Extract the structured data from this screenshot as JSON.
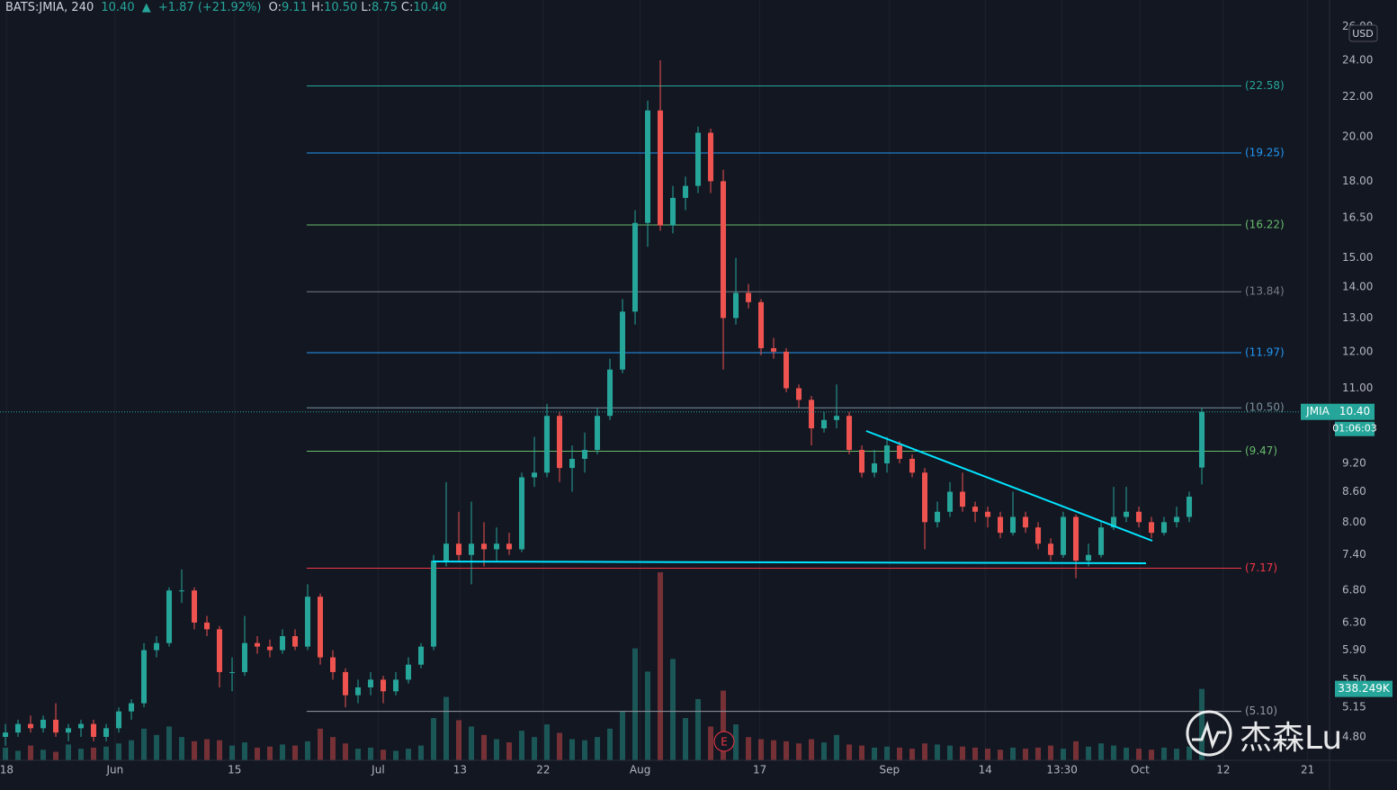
{
  "header": {
    "symbol": "BATS:JMIA, 240",
    "last": "10.40",
    "change": "+1.87 (+21.92%)",
    "fields": [
      {
        "label": "O:",
        "value": "9.11"
      },
      {
        "label": "H:",
        "value": "10.50"
      },
      {
        "label": "L:",
        "value": "8.75"
      },
      {
        "label": "C:",
        "value": "10.40"
      }
    ]
  },
  "price_tag": {
    "symbol": "JMIA",
    "price": "10.40",
    "countdown": "01:06:03"
  },
  "currency": "USD",
  "watermark": "杰森Lu",
  "chart_data": {
    "type": "candlestick",
    "log_scale": true,
    "grid": true,
    "up_color": "#26a69a",
    "down_color": "#ef5350",
    "ylim": [
      4.54,
      27.7
    ],
    "yticks": [
      {
        "value": 26,
        "label": "26.00"
      },
      {
        "value": 24,
        "label": "24.00"
      },
      {
        "value": 22,
        "label": "22.00"
      },
      {
        "value": 20,
        "label": "20.00"
      },
      {
        "value": 18,
        "label": "18.00"
      },
      {
        "value": 16.5,
        "label": "16.50"
      },
      {
        "value": 15,
        "label": "15.00"
      },
      {
        "value": 14,
        "label": "14.00"
      },
      {
        "value": 13,
        "label": "13.00"
      },
      {
        "value": 12,
        "label": "12.00"
      },
      {
        "value": 11,
        "label": "11.00"
      },
      {
        "value": 9.2,
        "label": "9.20"
      },
      {
        "value": 8.6,
        "label": "8.60"
      },
      {
        "value": 8,
        "label": "8.00"
      },
      {
        "value": 7.4,
        "label": "7.40"
      },
      {
        "value": 6.8,
        "label": "6.80"
      },
      {
        "value": 6.3,
        "label": "6.30"
      },
      {
        "value": 5.9,
        "label": "5.90"
      },
      {
        "value": 5.5,
        "label": "5.50"
      },
      {
        "value": 5.15,
        "label": "5.15"
      },
      {
        "value": 4.8,
        "label": "4.80"
      }
    ],
    "xlim": [
      -0.43,
      105.14
    ],
    "xticks": [
      {
        "value": 0.1,
        "label": "18"
      },
      {
        "value": 8.7,
        "label": "Jun"
      },
      {
        "value": 18.2,
        "label": "15"
      },
      {
        "value": 29.6,
        "label": "Jul"
      },
      {
        "value": 36.1,
        "label": "13"
      },
      {
        "value": 42.7,
        "label": "22"
      },
      {
        "value": 50.4,
        "label": "Aug"
      },
      {
        "value": 59.9,
        "label": "17"
      },
      {
        "value": 70.2,
        "label": "Sep"
      },
      {
        "value": 77.8,
        "label": "14"
      },
      {
        "value": 83.9,
        "label": "13:30"
      },
      {
        "value": 90.1,
        "label": "Oct"
      },
      {
        "value": 96.7,
        "label": "12"
      },
      {
        "value": 103.4,
        "label": "21"
      }
    ],
    "ohlc": [
      [
        4.8,
        4.95,
        4.7,
        4.85
      ],
      [
        4.85,
        5.0,
        4.8,
        4.95
      ],
      [
        4.95,
        5.05,
        4.85,
        4.9
      ],
      [
        4.9,
        5.05,
        4.85,
        5.0
      ],
      [
        5.0,
        5.2,
        4.8,
        4.85
      ],
      [
        4.85,
        4.95,
        4.75,
        4.9
      ],
      [
        4.9,
        5.0,
        4.8,
        4.95
      ],
      [
        4.95,
        5.0,
        4.75,
        4.8
      ],
      [
        4.8,
        4.95,
        4.75,
        4.9
      ],
      [
        4.9,
        5.15,
        4.85,
        5.1
      ],
      [
        5.1,
        5.25,
        5.0,
        5.2
      ],
      [
        5.2,
        6.0,
        5.15,
        5.9
      ],
      [
        5.9,
        6.1,
        5.8,
        6.0
      ],
      [
        6.0,
        6.85,
        5.95,
        6.8
      ],
      [
        6.8,
        7.15,
        6.6,
        6.8
      ],
      [
        6.8,
        6.85,
        6.2,
        6.3
      ],
      [
        6.3,
        6.4,
        6.1,
        6.2
      ],
      [
        6.2,
        6.25,
        5.4,
        5.6
      ],
      [
        5.6,
        5.8,
        5.35,
        5.6
      ],
      [
        5.6,
        6.4,
        5.55,
        6.0
      ],
      [
        6.0,
        6.1,
        5.85,
        5.95
      ],
      [
        5.95,
        6.05,
        5.8,
        5.9
      ],
      [
        5.9,
        6.2,
        5.85,
        6.1
      ],
      [
        6.1,
        6.2,
        5.9,
        5.95
      ],
      [
        5.95,
        6.9,
        5.9,
        6.7
      ],
      [
        6.7,
        6.75,
        5.7,
        5.8
      ],
      [
        5.8,
        5.9,
        5.5,
        5.6
      ],
      [
        5.6,
        5.65,
        5.15,
        5.3
      ],
      [
        5.3,
        5.5,
        5.2,
        5.4
      ],
      [
        5.4,
        5.6,
        5.3,
        5.5
      ],
      [
        5.5,
        5.55,
        5.2,
        5.35
      ],
      [
        5.35,
        5.6,
        5.3,
        5.5
      ],
      [
        5.5,
        5.8,
        5.45,
        5.7
      ],
      [
        5.7,
        6.0,
        5.65,
        5.95
      ],
      [
        5.95,
        7.4,
        5.9,
        7.3
      ],
      [
        7.3,
        8.8,
        7.2,
        7.6
      ],
      [
        7.6,
        8.2,
        7.3,
        7.4
      ],
      [
        7.4,
        8.4,
        6.9,
        7.6
      ],
      [
        7.6,
        8.0,
        7.2,
        7.5
      ],
      [
        7.5,
        7.9,
        7.3,
        7.6
      ],
      [
        7.6,
        7.8,
        7.4,
        7.5
      ],
      [
        7.5,
        9.0,
        7.45,
        8.9
      ],
      [
        8.9,
        9.8,
        8.7,
        9.0
      ],
      [
        9.0,
        10.6,
        8.9,
        10.3
      ],
      [
        10.3,
        10.4,
        8.8,
        9.1
      ],
      [
        9.1,
        9.6,
        8.6,
        9.3
      ],
      [
        9.3,
        9.9,
        9.0,
        9.5
      ],
      [
        9.5,
        10.5,
        9.4,
        10.3
      ],
      [
        10.3,
        11.8,
        10.2,
        11.5
      ],
      [
        11.5,
        13.6,
        11.4,
        13.2
      ],
      [
        13.2,
        16.8,
        12.8,
        16.3
      ],
      [
        16.3,
        21.8,
        15.4,
        21.3
      ],
      [
        21.3,
        24.0,
        16.0,
        16.2
      ],
      [
        16.2,
        17.8,
        15.9,
        17.3
      ],
      [
        17.3,
        18.2,
        16.8,
        17.8
      ],
      [
        17.8,
        20.5,
        17.5,
        20.2
      ],
      [
        20.2,
        20.4,
        17.5,
        18.0
      ],
      [
        18.0,
        18.5,
        11.5,
        13.0
      ],
      [
        13.0,
        15.0,
        12.8,
        13.8
      ],
      [
        13.8,
        14.1,
        13.3,
        13.5
      ],
      [
        13.5,
        13.6,
        11.9,
        12.1
      ],
      [
        12.1,
        12.4,
        11.8,
        12.0
      ],
      [
        12.0,
        12.1,
        10.9,
        11.0
      ],
      [
        11.0,
        11.1,
        10.5,
        10.7
      ],
      [
        10.7,
        10.8,
        9.6,
        10.0
      ],
      [
        10.0,
        10.4,
        9.9,
        10.2
      ],
      [
        10.2,
        11.1,
        10.0,
        10.3
      ],
      [
        10.3,
        10.4,
        9.4,
        9.5
      ],
      [
        9.5,
        9.6,
        8.9,
        9.0
      ],
      [
        9.0,
        9.5,
        8.9,
        9.2
      ],
      [
        9.2,
        9.8,
        9.0,
        9.6
      ],
      [
        9.6,
        9.7,
        9.2,
        9.3
      ],
      [
        9.3,
        9.4,
        8.9,
        9.0
      ],
      [
        9.0,
        9.1,
        7.5,
        8.0
      ],
      [
        8.0,
        8.4,
        7.9,
        8.2
      ],
      [
        8.2,
        8.8,
        8.1,
        8.6
      ],
      [
        8.6,
        9.0,
        8.2,
        8.3
      ],
      [
        8.3,
        8.4,
        8.0,
        8.2
      ],
      [
        8.2,
        8.3,
        7.9,
        8.1
      ],
      [
        8.1,
        8.2,
        7.7,
        7.8
      ],
      [
        7.8,
        8.6,
        7.75,
        8.1
      ],
      [
        8.1,
        8.2,
        7.8,
        7.9
      ],
      [
        7.9,
        8.0,
        7.5,
        7.6
      ],
      [
        7.6,
        7.7,
        7.3,
        7.4
      ],
      [
        7.4,
        8.2,
        7.35,
        8.1
      ],
      [
        8.1,
        8.15,
        7.0,
        7.3
      ],
      [
        7.3,
        7.6,
        7.2,
        7.4
      ],
      [
        7.4,
        8.0,
        7.35,
        7.9
      ],
      [
        7.9,
        8.7,
        7.85,
        8.1
      ],
      [
        8.1,
        8.7,
        8.0,
        8.2
      ],
      [
        8.2,
        8.3,
        7.9,
        8.0
      ],
      [
        8.0,
        8.1,
        7.7,
        7.8
      ],
      [
        7.8,
        8.1,
        7.75,
        8.0
      ],
      [
        8.0,
        8.3,
        7.9,
        8.1
      ],
      [
        8.1,
        8.6,
        8.0,
        8.5
      ],
      [
        9.11,
        10.5,
        8.75,
        10.4
      ]
    ],
    "volume": [
      60000,
      45000,
      70000,
      50000,
      40000,
      75000,
      55000,
      60000,
      65000,
      80000,
      95000,
      150000,
      120000,
      160000,
      110000,
      90000,
      100000,
      95000,
      70000,
      85000,
      60000,
      65000,
      75000,
      70000,
      90000,
      150000,
      110000,
      80000,
      55000,
      60000,
      50000,
      45000,
      55000,
      70000,
      200000,
      300000,
      190000,
      160000,
      120000,
      100000,
      85000,
      140000,
      110000,
      170000,
      130000,
      100000,
      95000,
      110000,
      150000,
      230000,
      530000,
      420000,
      890000,
      480000,
      200000,
      290000,
      160000,
      330000,
      170000,
      110000,
      100000,
      95000,
      90000,
      80000,
      100000,
      85000,
      120000,
      75000,
      70000,
      60000,
      65000,
      60000,
      55000,
      80000,
      75000,
      70000,
      65000,
      60000,
      55000,
      50000,
      60000,
      55000,
      60000,
      70000,
      55000,
      90000,
      65000,
      80000,
      70000,
      60000,
      55000,
      50000,
      60000,
      55000,
      65000,
      338249
    ],
    "volume_ylim": [
      0,
      3600000
    ],
    "volume_tag": "338.249K",
    "earnings_marker": "E",
    "fib_levels": [
      {
        "value": 22.58,
        "label": "(22.58)",
        "color": "#26a69a"
      },
      {
        "value": 19.25,
        "label": "(19.25)",
        "color": "#2196f3"
      },
      {
        "value": 16.22,
        "label": "(16.22)",
        "color": "#66bb6a"
      },
      {
        "value": 13.84,
        "label": "(13.84)",
        "color": "#787b86"
      },
      {
        "value": 11.97,
        "label": "(11.97)",
        "color": "#2196f3"
      },
      {
        "value": 10.5,
        "label": "(10.50)",
        "color": "#78909c"
      },
      {
        "value": 9.47,
        "label": "(9.47)",
        "color": "#66bb6a"
      },
      {
        "value": 7.17,
        "label": "(7.17)",
        "color": "#f23645"
      },
      {
        "value": 5.1,
        "label": "(5.10)",
        "color": "#9598a1"
      }
    ]
  }
}
